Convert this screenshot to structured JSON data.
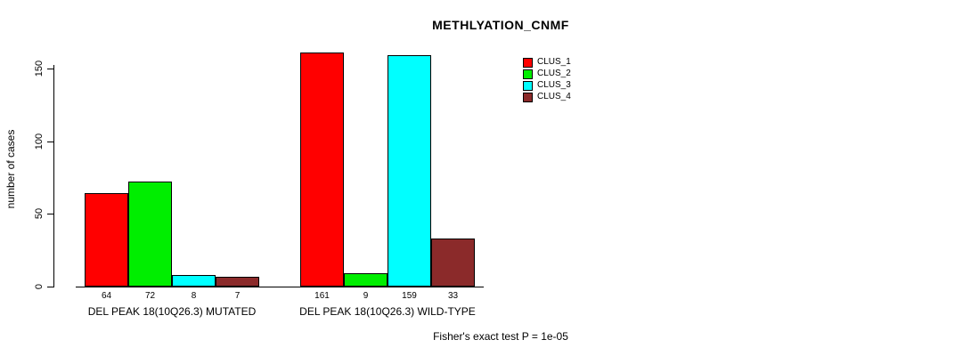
{
  "title": "METHLYATION_CNMF",
  "footer": "Fisher's exact test P = 1e-05",
  "chart_data": {
    "type": "bar",
    "title": "METHLYATION_CNMF",
    "xlabel": "",
    "ylabel": "number of cases",
    "ylim": [
      0,
      165
    ],
    "yticks": [
      0,
      50,
      100,
      150
    ],
    "grid": false,
    "legend_position": "top-right",
    "series": [
      "CLUS_1",
      "CLUS_2",
      "CLUS_3",
      "CLUS_4"
    ],
    "colors": [
      "#ff0000",
      "#00ee00",
      "#00ffff",
      "#8b2a2a"
    ],
    "groups": [
      {
        "label": "DEL PEAK 18(10Q26.3) MUTATED",
        "values": [
          64,
          72,
          8,
          7
        ]
      },
      {
        "label": "DEL PEAK 18(10Q26.3) WILD-TYPE",
        "values": [
          161,
          9,
          159,
          33
        ]
      }
    ],
    "annotation": "Fisher's exact test P = 1e-05"
  }
}
